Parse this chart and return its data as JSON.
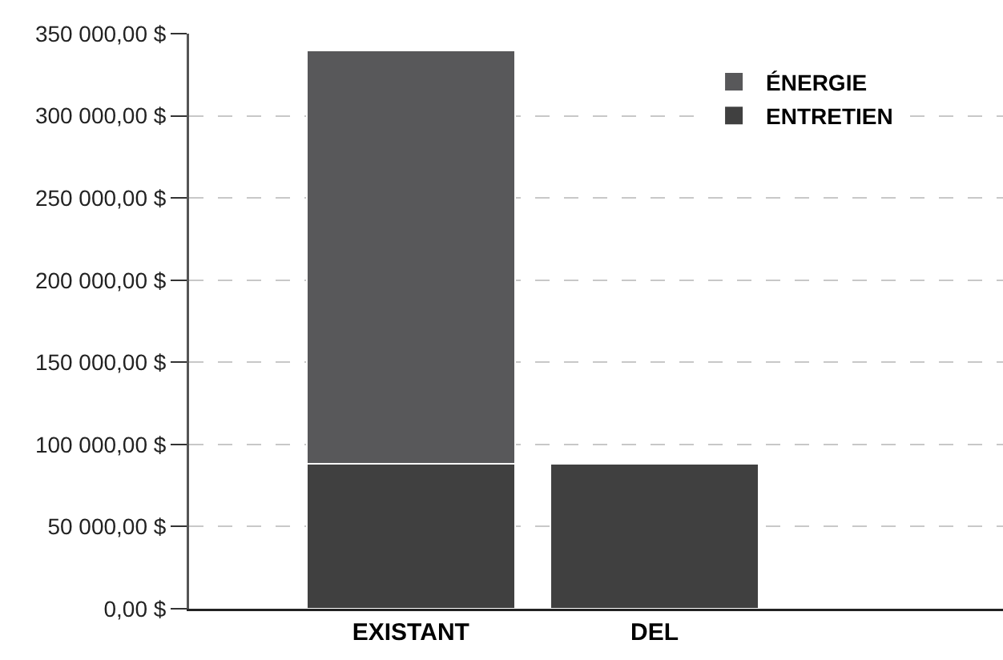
{
  "chart_data": {
    "type": "bar",
    "stacked": true,
    "categories": [
      "EXISTANT",
      "DEL"
    ],
    "series": [
      {
        "name": "ENTRETIEN",
        "color": "#404040",
        "values": [
          88000,
          88000
        ]
      },
      {
        "name": "ÉNERGIE",
        "color": "#58585a",
        "values": [
          252000,
          null
        ]
      }
    ],
    "ylim": [
      0,
      350000
    ],
    "yticks": [
      {
        "value": 0,
        "label": "0,00 $"
      },
      {
        "value": 50000,
        "label": "50 000,00 $"
      },
      {
        "value": 100000,
        "label": "100 000,00 $"
      },
      {
        "value": 150000,
        "label": "150 000,00 $"
      },
      {
        "value": 200000,
        "label": "200 000,00 $"
      },
      {
        "value": 250000,
        "label": "250 000,00 $"
      },
      {
        "value": 300000,
        "label": "300 000,00 $"
      },
      {
        "value": 350000,
        "label": "350 000,00 $"
      }
    ],
    "grid": "y",
    "legend": "top right"
  }
}
